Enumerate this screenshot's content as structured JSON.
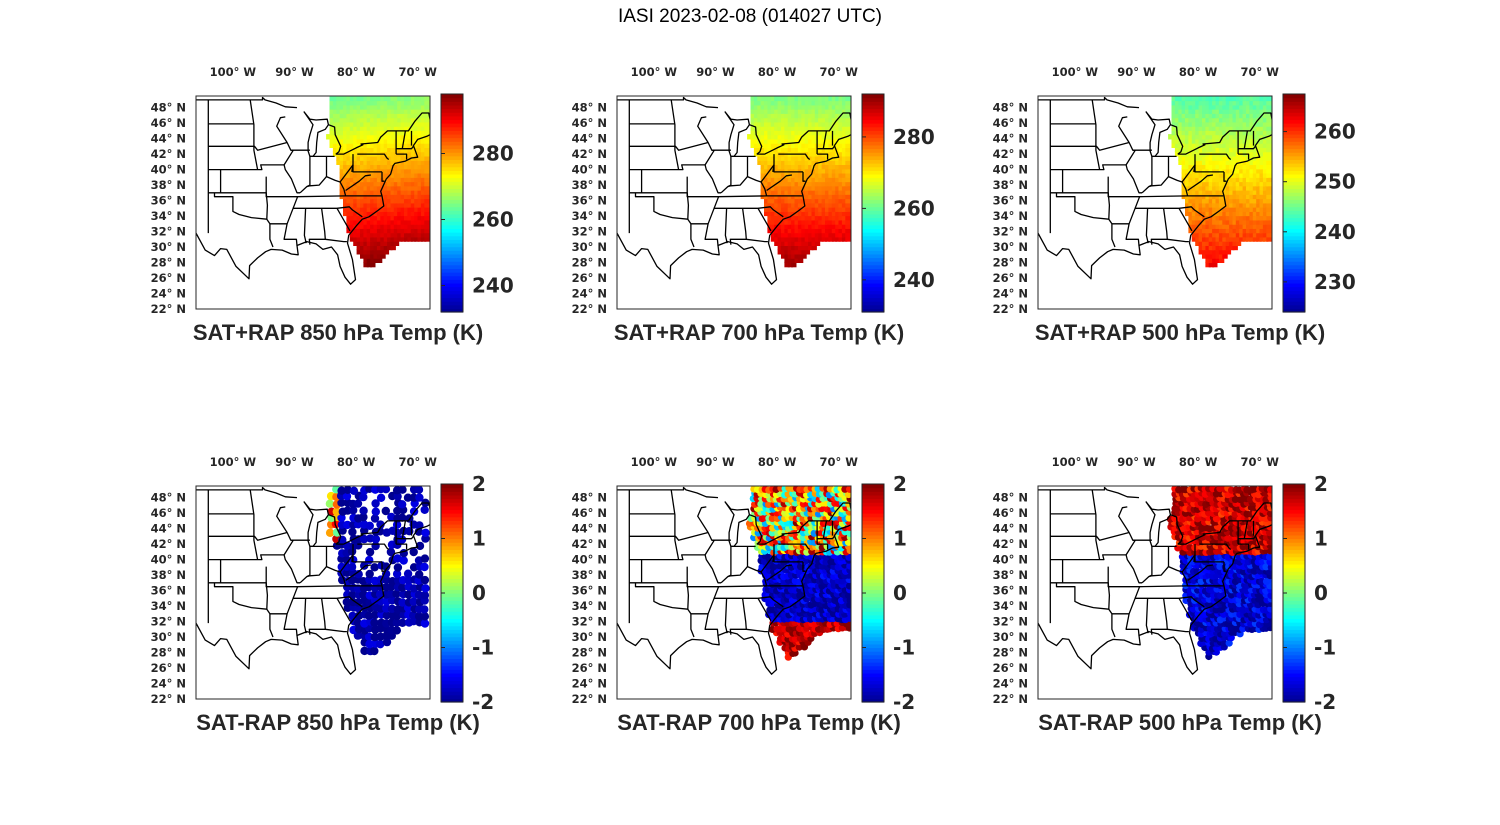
{
  "figure": {
    "title": "IASI 2023-02-08 (014027 UTC)"
  },
  "lon_ticks": [
    "100° W",
    "90° W",
    "80° W",
    "70° W"
  ],
  "lat_ticks": [
    "48° N",
    "46° N",
    "44° N",
    "42° N",
    "40° N",
    "38° N",
    "36° N",
    "34° N",
    "32° N",
    "30° N",
    "28° N",
    "26° N",
    "24° N",
    "22° N"
  ],
  "colormap": [
    "#00008f",
    "#0000ff",
    "#0080ff",
    "#00ffff",
    "#80ff80",
    "#ffff00",
    "#ff8000",
    "#ff0000",
    "#800000"
  ],
  "map_extent": {
    "lon": [
      -106,
      -68
    ],
    "lat": [
      22,
      49.5
    ]
  },
  "panels": [
    {
      "id": "sat_rap_850",
      "title": "SAT+RAP 850 hPa Temp (K)",
      "field": "temp",
      "level": 850,
      "clim": [
        232,
        298
      ],
      "cbar_ticks": [
        "240",
        "260",
        "280"
      ],
      "cbar_tick_values": [
        240,
        260,
        280
      ]
    },
    {
      "id": "sat_rap_700",
      "title": "SAT+RAP 700 hPa Temp (K)",
      "field": "temp",
      "level": 700,
      "clim": [
        231,
        292
      ],
      "cbar_ticks": [
        "240",
        "260",
        "280"
      ],
      "cbar_tick_values": [
        240,
        260,
        280
      ]
    },
    {
      "id": "sat_rap_500",
      "title": "SAT+RAP 500 hPa Temp (K)",
      "field": "temp",
      "level": 500,
      "clim": [
        224,
        267.5
      ],
      "cbar_ticks": [
        "230",
        "240",
        "250",
        "260"
      ],
      "cbar_tick_values": [
        230,
        240,
        250,
        260
      ]
    },
    {
      "id": "sat_minus_rap_850",
      "title": "SAT-RAP 850 hPa Temp (K)",
      "field": "diff",
      "level": 850,
      "clim": [
        -2,
        2
      ],
      "cbar_ticks": [
        "-2",
        "-1",
        "0",
        "1",
        "2"
      ],
      "cbar_tick_values": [
        -2,
        -1,
        0,
        1,
        2
      ]
    },
    {
      "id": "sat_minus_rap_700",
      "title": "SAT-RAP 700 hPa Temp (K)",
      "field": "diff",
      "level": 700,
      "clim": [
        -2,
        2
      ],
      "cbar_ticks": [
        "-2",
        "-1",
        "0",
        "1",
        "2"
      ],
      "cbar_tick_values": [
        -2,
        -1,
        0,
        1,
        2
      ]
    },
    {
      "id": "sat_minus_rap_500",
      "title": "SAT-RAP 500 hPa Temp (K)",
      "field": "diff",
      "level": 500,
      "clim": [
        -2,
        2
      ],
      "cbar_ticks": [
        "-2",
        "-1",
        "0",
        "1",
        "2"
      ],
      "cbar_tick_values": [
        -2,
        -1,
        0,
        1,
        2
      ]
    }
  ]
}
